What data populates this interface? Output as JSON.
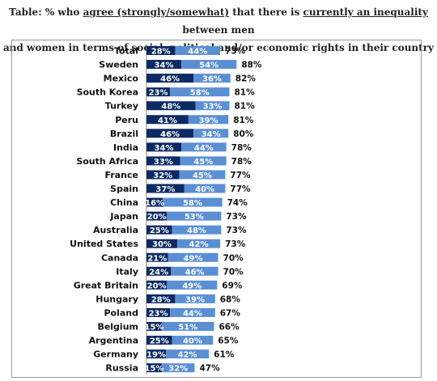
{
  "title": {
    "prefix": "Table: % who ",
    "u1": "agree (strongly/somewhat)",
    "mid": " that there is ",
    "u2": "currently an inequality",
    "suffix": " between men",
    "line2": "and women in terms of social, political and/or economic rights in their country"
  },
  "colors": {
    "strong": "#0c2a63",
    "somewhat": "#5b8fd4",
    "axis": "#8a8a8a"
  },
  "chart_data": {
    "type": "bar",
    "stacked": true,
    "orientation": "horizontal",
    "categories": [
      "Total",
      "Sweden",
      "Mexico",
      "South Korea",
      "Turkey",
      "Peru",
      "Brazil",
      "India",
      "South Africa",
      "France",
      "Spain",
      "China",
      "Japan",
      "Australia",
      "United States",
      "Canada",
      "Italy",
      "Great Britain",
      "Hungary",
      "Poland",
      "Belgium",
      "Argentina",
      "Germany",
      "Russia"
    ],
    "series": [
      {
        "values": [
          28,
          34,
          46,
          23,
          48,
          41,
          46,
          34,
          33,
          32,
          37,
          16,
          20,
          25,
          30,
          21,
          24,
          20,
          28,
          23,
          15,
          25,
          19,
          15
        ]
      },
      {
        "values": [
          44,
          54,
          36,
          58,
          33,
          39,
          34,
          44,
          45,
          45,
          40,
          58,
          53,
          48,
          42,
          49,
          46,
          49,
          39,
          44,
          51,
          40,
          42,
          32
        ]
      }
    ],
    "totals": [
      73,
      88,
      82,
      81,
      81,
      81,
      80,
      78,
      78,
      77,
      77,
      74,
      73,
      73,
      73,
      70,
      70,
      69,
      68,
      67,
      66,
      65,
      61,
      47
    ],
    "xlim": [
      0,
      100
    ],
    "legend": "none",
    "grid": false
  }
}
